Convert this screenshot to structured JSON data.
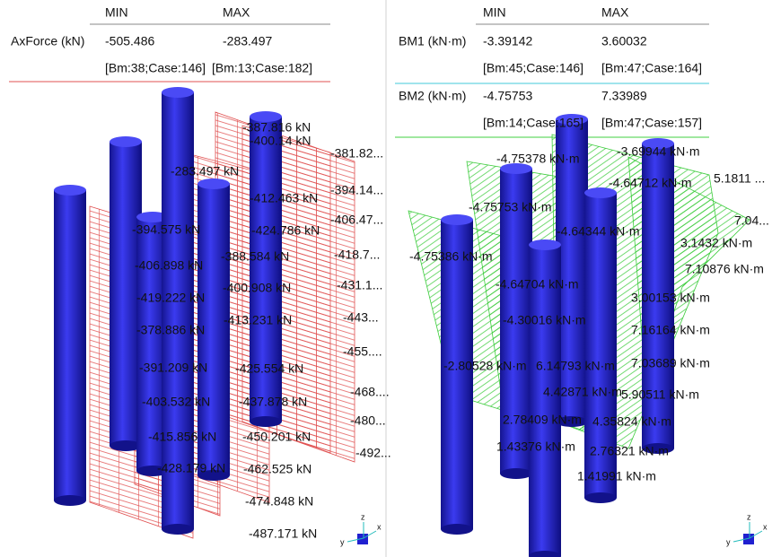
{
  "left": {
    "headers": [
      "MIN",
      "MAX"
    ],
    "rows": [
      {
        "label": "AxForce (kN)",
        "min": "-505.486",
        "max": "-283.497",
        "min_at": "[Bm:38;Case:146]",
        "max_at": "[Bm:13;Case:182]"
      }
    ],
    "labels": [
      "-387.816 kN",
      "-381.82...",
      "-400.14 kN",
      "-283.497 kN",
      "-394.14...",
      "-412.463 kN",
      "-406.47...",
      "-394.575 kN",
      "-424.786 kN",
      "-418.7...",
      "-406.898 kN",
      "-388.584 kN",
      "-431.1...",
      "-400.908 kN",
      "-419.222 kN",
      "-443...",
      "-413.231 kN",
      "-378.886 kN",
      "-455....",
      "-425.554 kN",
      "-391.209 kN",
      "-468....",
      "-403.532 kN",
      "-437.878 kN",
      "-480...",
      "-415.856 kN",
      "-450.201 kN",
      "-492...",
      "-428.179 kN",
      "-462.525 kN",
      "-474.848 kN",
      "-487.171 kN"
    ]
  },
  "right": {
    "headers": [
      "MIN",
      "MAX"
    ],
    "rows": [
      {
        "label": "BM1 (kN·m)",
        "min": "-3.39142",
        "max": "3.60032",
        "min_at": "[Bm:45;Case:146]",
        "max_at": "[Bm:47;Case:164]"
      },
      {
        "label": "BM2 (kN·m)",
        "min": "-4.75753",
        "max": "7.33989",
        "min_at": "[Bm:14;Case:165]",
        "max_at": "[Bm:47;Case:157]"
      }
    ],
    "labels": [
      "-4.75378 kN·m",
      "-3.69944 kN·m",
      "5.1811 ...",
      "-4.64712 kN·m",
      "-4.75753 kN·m",
      "7.04...",
      "-4.64344 kN·m",
      "3.1432 kN·m",
      "-4.75386 kN·m",
      "7.10876 kN·m",
      "-4.64704 kN·m",
      "3.00153 kN·m",
      "-4.30016 kN·m",
      "7.16164 kN·m",
      "-2.80528 kN·m",
      "6.14793 kN·m",
      "7.03689 kN·m",
      "4.42871 kN·m",
      "5.90511 kN·m",
      "2.78409 kN·m",
      "4.35824 kN·m",
      "1.43376 kN·m",
      "2.76321 kN·m",
      "1.41991 kN·m"
    ]
  },
  "axis_labels": [
    "z",
    "y",
    "x"
  ]
}
